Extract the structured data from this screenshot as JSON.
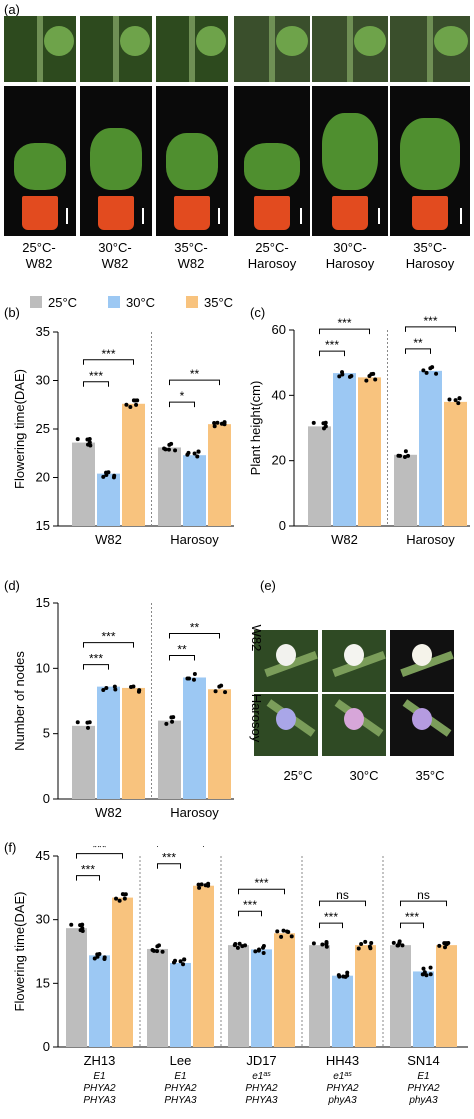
{
  "panels": {
    "a": "(a)",
    "b": "(b)",
    "c": "(c)",
    "d": "(d)",
    "e": "(e)",
    "f": "(f)"
  },
  "panel_a": {
    "captions": [
      "25°C-\nW82",
      "30°C-\nW82",
      "35°C-\nW82",
      "25°C-\nHarosoy",
      "30°C-\nHarosoy",
      "35°C-\nHarosoy"
    ]
  },
  "panel_e": {
    "row_labels": [
      "W82",
      "Harosoy"
    ],
    "col_labels": [
      "25°C",
      "30°C",
      "35°C"
    ]
  },
  "colors": {
    "25": "#bdbdbd",
    "30": "#9cc8f3",
    "35": "#f8c37e"
  },
  "chart_data": [
    {
      "type": "bar",
      "id": "b",
      "legend": [
        "25°C",
        "30°C",
        "35°C"
      ],
      "categories": [
        "W82",
        "Harosoy"
      ],
      "ylabel": "Flowering time(DAE)",
      "ylim": [
        15,
        35
      ],
      "yticks": [
        15,
        20,
        25,
        30,
        35
      ],
      "series": [
        {
          "name": "25°C",
          "values": [
            23.6,
            23.1
          ]
        },
        {
          "name": "30°C",
          "values": [
            20.4,
            22.3
          ]
        },
        {
          "name": "35°C",
          "values": [
            27.6,
            25.5
          ]
        }
      ],
      "significance": [
        {
          "group": 0,
          "from": 0,
          "to": 1,
          "label": "***"
        },
        {
          "group": 0,
          "from": 0,
          "to": 2,
          "label": "***"
        },
        {
          "group": 1,
          "from": 0,
          "to": 1,
          "label": "*"
        },
        {
          "group": 1,
          "from": 0,
          "to": 2,
          "label": "**"
        }
      ]
    },
    {
      "type": "bar",
      "id": "c",
      "categories": [
        "W82",
        "Harosoy"
      ],
      "ylabel": "Plant height(cm)",
      "ylim": [
        0,
        60
      ],
      "yticks": [
        0,
        20,
        40,
        60
      ],
      "series": [
        {
          "name": "25°C",
          "values": [
            30.5,
            21.8
          ]
        },
        {
          "name": "30°C",
          "values": [
            46.8,
            47.5
          ]
        },
        {
          "name": "35°C",
          "values": [
            45.5,
            38.0
          ]
        }
      ],
      "significance": [
        {
          "group": 0,
          "from": 0,
          "to": 1,
          "label": "***"
        },
        {
          "group": 0,
          "from": 0,
          "to": 2,
          "label": "***"
        },
        {
          "group": 1,
          "from": 0,
          "to": 1,
          "label": "**"
        },
        {
          "group": 1,
          "from": 0,
          "to": 2,
          "label": "***"
        }
      ]
    },
    {
      "type": "bar",
      "id": "d",
      "categories": [
        "W82",
        "Harosoy"
      ],
      "ylabel": "Number of nodes",
      "ylim": [
        0,
        15
      ],
      "yticks": [
        0,
        5,
        10,
        15
      ],
      "series": [
        {
          "name": "25°C",
          "values": [
            5.6,
            6.0
          ]
        },
        {
          "name": "30°C",
          "values": [
            8.6,
            9.3
          ]
        },
        {
          "name": "35°C",
          "values": [
            8.5,
            8.4
          ]
        }
      ],
      "significance": [
        {
          "group": 0,
          "from": 0,
          "to": 1,
          "label": "***"
        },
        {
          "group": 0,
          "from": 0,
          "to": 2,
          "label": "***"
        },
        {
          "group": 1,
          "from": 0,
          "to": 1,
          "label": "**"
        },
        {
          "group": 1,
          "from": 0,
          "to": 2,
          "label": "**"
        }
      ]
    },
    {
      "type": "bar",
      "id": "f",
      "categories": [
        "ZH13",
        "Lee",
        "JD17",
        "HH43",
        "SN14"
      ],
      "genotypes": [
        [
          "E1",
          "PHYA2",
          "PHYA3"
        ],
        [
          "E1",
          "PHYA2",
          "PHYA3"
        ],
        [
          "e1as",
          "PHYA2",
          "PHYA3"
        ],
        [
          "e1as",
          "PHYA2",
          "phyA3"
        ],
        [
          "E1",
          "PHYA2",
          "phyA3"
        ]
      ],
      "ylabel": "Flowering time(DAE)",
      "ylim": [
        0,
        45
      ],
      "yticks": [
        0,
        15,
        30,
        45
      ],
      "series": [
        {
          "name": "25°C",
          "values": [
            28.0,
            23.1,
            24.0,
            24.0,
            24.0
          ]
        },
        {
          "name": "30°C",
          "values": [
            21.6,
            19.8,
            23.0,
            16.8,
            17.8
          ]
        },
        {
          "name": "35°C",
          "values": [
            35.2,
            38.0,
            26.8,
            24.0,
            24.0
          ]
        }
      ],
      "significance": [
        {
          "group": 0,
          "from": 0,
          "to": 1,
          "label": "***"
        },
        {
          "group": 0,
          "from": 0,
          "to": 2,
          "label": "***"
        },
        {
          "group": 1,
          "from": 0,
          "to": 1,
          "label": "***"
        },
        {
          "group": 1,
          "from": 0,
          "to": 2,
          "label": "***"
        },
        {
          "group": 2,
          "from": 0,
          "to": 1,
          "label": "***"
        },
        {
          "group": 2,
          "from": 0,
          "to": 2,
          "label": "***"
        },
        {
          "group": 3,
          "from": 0,
          "to": 1,
          "label": "***"
        },
        {
          "group": 3,
          "from": 0,
          "to": 2,
          "label": "ns"
        },
        {
          "group": 4,
          "from": 0,
          "to": 1,
          "label": "***"
        },
        {
          "group": 4,
          "from": 0,
          "to": 2,
          "label": "ns"
        }
      ]
    }
  ]
}
